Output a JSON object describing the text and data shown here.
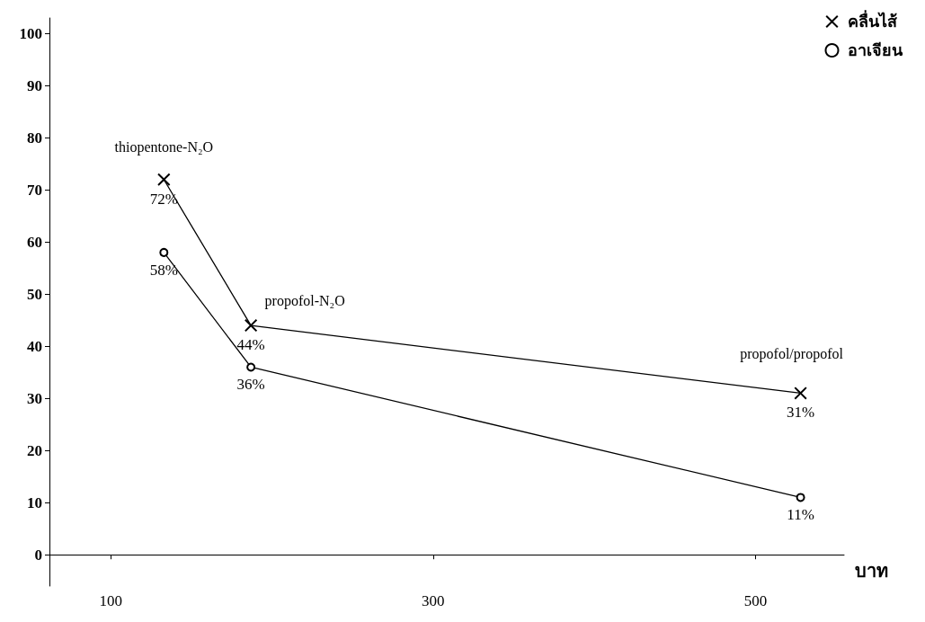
{
  "chart_data": {
    "type": "line",
    "xlabel": "บาท",
    "xlim": [
      62,
      555
    ],
    "xticks": [
      100,
      300,
      500
    ],
    "ylim": [
      -6,
      103
    ],
    "yticks": [
      0,
      10,
      20,
      30,
      40,
      50,
      60,
      70,
      80,
      90,
      100
    ],
    "grid": false,
    "legend": "top right",
    "line_style": "solid",
    "series": [
      {
        "name": "คลื่นไส้",
        "color": "#000000",
        "marker": "cross",
        "x": [
          133,
          187,
          528
        ],
        "values": [
          72,
          44,
          31
        ],
        "value_labels": [
          "72%",
          "44%",
          "31%"
        ]
      },
      {
        "name": "อาเจียน",
        "color": "#000000",
        "marker": "circle",
        "x": [
          133,
          187,
          528
        ],
        "values": [
          58,
          36,
          11
        ],
        "value_labels": [
          "58%",
          "36%",
          "11%"
        ]
      }
    ],
    "annotations": [
      "thiopentone-N₂O",
      "propofol-N₂O",
      "propofol/propofol"
    ]
  }
}
